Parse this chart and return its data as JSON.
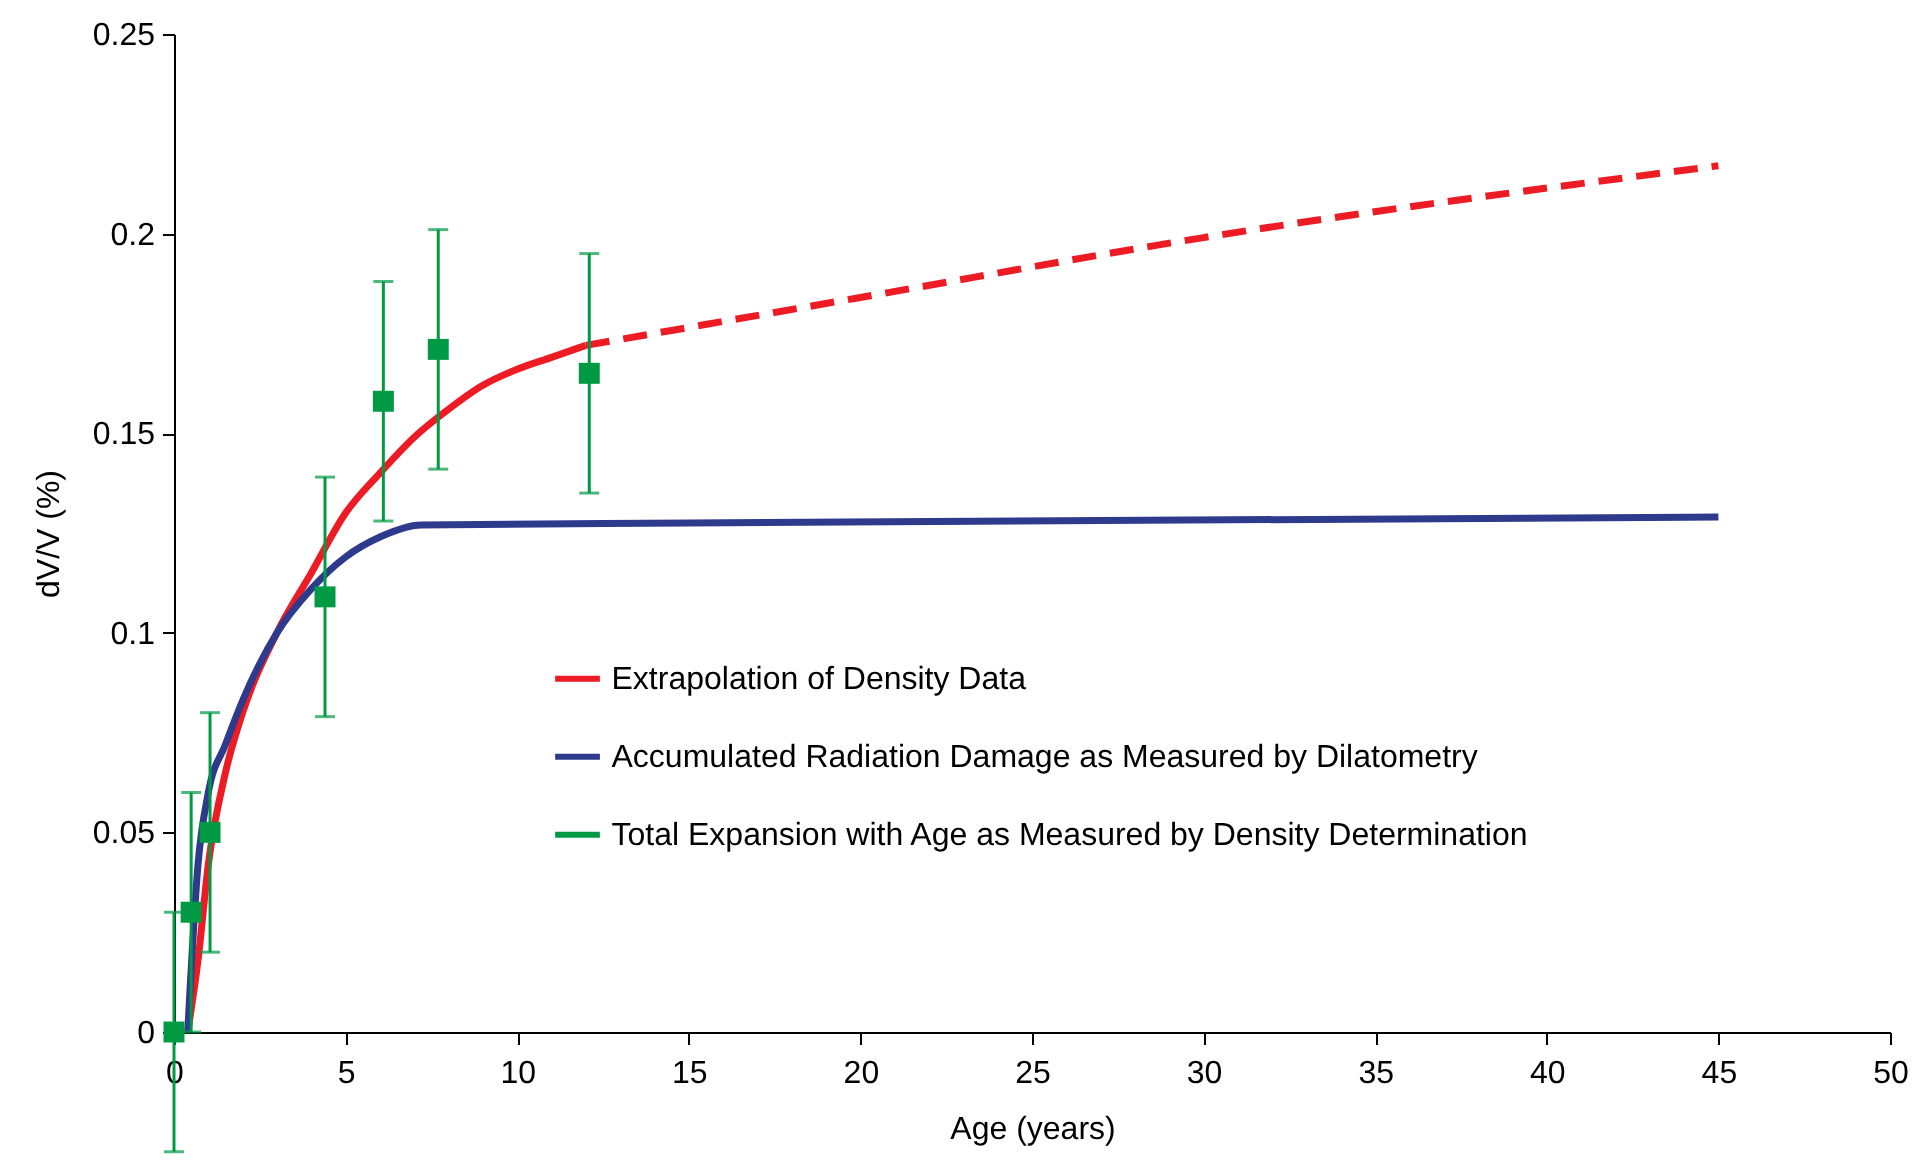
{
  "chart_data": {
    "type": "line",
    "xlabel": "Age (years)",
    "ylabel": "dV/V (%)",
    "xlim": [
      0,
      50
    ],
    "ylim": [
      0,
      0.25
    ],
    "xticks": [
      0,
      5,
      10,
      15,
      20,
      25,
      30,
      35,
      40,
      45,
      50
    ],
    "yticks": [
      0,
      0.05,
      0.1,
      0.15,
      0.2,
      0.25
    ],
    "grid": false,
    "legend": "center",
    "series": [
      {
        "color": "#ed1c24",
        "line_style": "solid",
        "x": [
          0.4,
          0.7,
          1,
          1.5,
          2,
          3,
          4,
          5,
          6,
          7,
          8,
          9,
          10,
          11,
          12
        ],
        "values": [
          0,
          0.018,
          0.042,
          0.065,
          0.08,
          0.1,
          0.115,
          0.13,
          0.14,
          0.149,
          0.156,
          0.162,
          0.166,
          0.169,
          0.172
        ]
      },
      {
        "name": "Extrapolation of Density Data",
        "color": "#ed1c24",
        "line_style": "dashed",
        "x": [
          12,
          20,
          30,
          45
        ],
        "values": [
          0.172,
          0.184,
          0.199,
          0.217
        ]
      },
      {
        "name": "Accumulated Radiation Damage as Measured by Dilatometry",
        "color": "#2e3a8c",
        "line_style": "solid",
        "x": [
          0.4,
          0.7,
          1,
          1.5,
          2,
          3,
          4,
          5,
          6,
          7.2,
          15,
          45
        ],
        "values": [
          0,
          0.042,
          0.06,
          0.072,
          0.083,
          0.1,
          0.111,
          0.119,
          0.124,
          0.127,
          0.1275,
          0.129
        ]
      },
      {
        "name": "Total Expansion with Age as Measured by Density Determination",
        "type": "scatter",
        "marker": "square",
        "color": "#009a44",
        "x": [
          0,
          0.5,
          1.05,
          4.4,
          6.1,
          7.7,
          12.1
        ],
        "values": [
          0,
          0.03,
          0.05,
          0.109,
          0.158,
          0.171,
          0.165
        ],
        "errors": [
          0.03,
          0.03,
          0.03,
          0.03,
          0.03,
          0.03,
          0.03
        ]
      }
    ]
  }
}
